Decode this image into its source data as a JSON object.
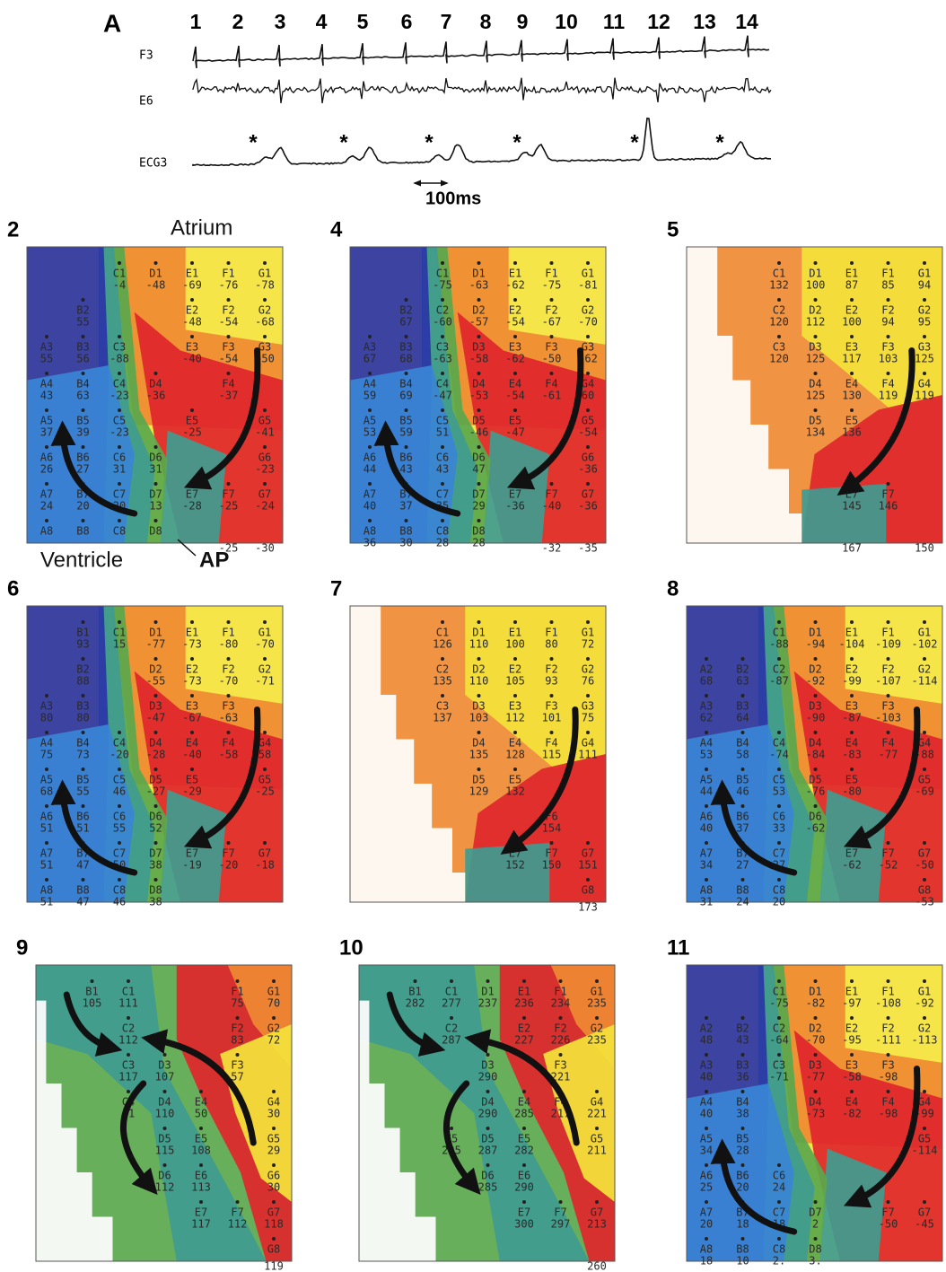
{
  "panel_a": {
    "label": "A",
    "beats": [
      1,
      2,
      3,
      4,
      5,
      6,
      7,
      8,
      9,
      10,
      11,
      12,
      13,
      14
    ],
    "traces": [
      "F3",
      "E6",
      "ECG3"
    ],
    "ecg_markers": [
      "*",
      "*",
      "*",
      "*",
      "*",
      "*"
    ],
    "scale_label": "100ms"
  },
  "maps": [
    {
      "label": "2",
      "annotations": [
        "Atrium",
        "Ventricle",
        "AP"
      ],
      "electrodes": [
        [
          "C1",
          -4
        ],
        [
          "D1",
          -48
        ],
        [
          "E1",
          -69
        ],
        [
          "F1",
          -76
        ],
        [
          "G1",
          -78
        ],
        [
          "B2",
          55
        ],
        [
          "E2",
          -48
        ],
        [
          "F2",
          -54
        ],
        [
          "G2",
          -68
        ],
        [
          "A3",
          55
        ],
        [
          "B3",
          56
        ],
        [
          "C3",
          -88
        ],
        [
          "E3",
          -40
        ],
        [
          "F3",
          -54
        ],
        [
          "G3",
          -50
        ],
        [
          "A4",
          43
        ],
        [
          "B4",
          63
        ],
        [
          "C4",
          -23
        ],
        [
          "D4",
          -36
        ],
        [
          "F4",
          -37
        ],
        [
          "A5",
          37
        ],
        [
          "B5",
          39
        ],
        [
          "C5",
          -23
        ],
        [
          "E5",
          -25
        ],
        [
          "G5",
          -41
        ],
        [
          "A6",
          26
        ],
        [
          "B6",
          27
        ],
        [
          "C6",
          31
        ],
        [
          "D6",
          31
        ],
        [
          "G6",
          -23
        ],
        [
          "A7",
          24
        ],
        [
          "B7",
          20
        ],
        [
          "C7",
          20
        ],
        [
          "D7",
          13
        ],
        [
          "E7",
          -28
        ],
        [
          "F7",
          -25
        ],
        [
          "G7",
          -24
        ],
        [
          "A8"
        ],
        [
          "B8"
        ],
        [
          "C8"
        ],
        [
          "D8"
        ]
      ],
      "bottom_values": [
        -25,
        -30
      ]
    },
    {
      "label": "4",
      "electrodes": [
        [
          "C1",
          -75
        ],
        [
          "D1",
          -63
        ],
        [
          "E1",
          -62
        ],
        [
          "F1",
          -75
        ],
        [
          "G1",
          -81
        ],
        [
          "B2",
          67
        ],
        [
          "C2",
          -60
        ],
        [
          "D2",
          -57
        ],
        [
          "E2",
          -54
        ],
        [
          "F2",
          -67
        ],
        [
          "G2",
          -70
        ],
        [
          "A3",
          67
        ],
        [
          "B3",
          68
        ],
        [
          "C3",
          -63
        ],
        [
          "D3",
          -58
        ],
        [
          "E3",
          -62
        ],
        [
          "F3",
          -50
        ],
        [
          "G3",
          -62
        ],
        [
          "A4",
          59
        ],
        [
          "B4",
          69
        ],
        [
          "C4",
          -47
        ],
        [
          "D4",
          -53
        ],
        [
          "E4",
          -54
        ],
        [
          "F4",
          -61
        ],
        [
          "G4",
          60
        ],
        [
          "A5",
          53
        ],
        [
          "B5",
          59
        ],
        [
          "C5",
          51
        ],
        [
          "D5",
          -46
        ],
        [
          "E5",
          -47
        ],
        [
          "G5",
          -54
        ],
        [
          "A6",
          44
        ],
        [
          "B6",
          43
        ],
        [
          "C6",
          43
        ],
        [
          "D6",
          47
        ],
        [
          "G6",
          -36
        ],
        [
          "A7",
          40
        ],
        [
          "B7",
          37
        ],
        [
          "C7",
          35
        ],
        [
          "D7",
          29
        ],
        [
          "E7",
          -36
        ],
        [
          "F7",
          -40
        ],
        [
          "G7",
          -36
        ],
        [
          "A8",
          36
        ],
        [
          "B8",
          30
        ],
        [
          "C8",
          28
        ],
        [
          "D8",
          28
        ]
      ],
      "bottom_values": [
        -32,
        -35
      ]
    },
    {
      "label": "5",
      "electrodes": [
        [
          "C1",
          132
        ],
        [
          "D1",
          100
        ],
        [
          "E1",
          87
        ],
        [
          "F1",
          85
        ],
        [
          "G1",
          94
        ],
        [
          "C2",
          120
        ],
        [
          "D2",
          112
        ],
        [
          "E2",
          100
        ],
        [
          "F2",
          94
        ],
        [
          "G2",
          95
        ],
        [
          "C3",
          120
        ],
        [
          "D3",
          125
        ],
        [
          "E3",
          117
        ],
        [
          "F3",
          103
        ],
        [
          "G3",
          125
        ],
        [
          "D4",
          125
        ],
        [
          "E4",
          130
        ],
        [
          "F4",
          119
        ],
        [
          "G4",
          119
        ],
        [
          "D5",
          134
        ],
        [
          "E5",
          136
        ],
        [
          "E7",
          145
        ],
        [
          "F7",
          146
        ]
      ],
      "bottom_values": [
        167,
        150
      ]
    },
    {
      "label": "6",
      "electrodes": [
        [
          "B1",
          93
        ],
        [
          "C1",
          15
        ],
        [
          "D1",
          -77
        ],
        [
          "E1",
          -73
        ],
        [
          "F1",
          -80
        ],
        [
          "G1",
          -70
        ],
        [
          "B2",
          88
        ],
        [
          "D2",
          -55
        ],
        [
          "E2",
          -73
        ],
        [
          "F2",
          -70
        ],
        [
          "G2",
          -71
        ],
        [
          "A3",
          80
        ],
        [
          "B3",
          80
        ],
        [
          "D3",
          -47
        ],
        [
          "E3",
          -67
        ],
        [
          "F3",
          -63
        ],
        [
          "A4",
          75
        ],
        [
          "B4",
          73
        ],
        [
          "C4",
          -20
        ],
        [
          "D4",
          -28
        ],
        [
          "E4",
          -40
        ],
        [
          "F4",
          -58
        ],
        [
          "G4",
          58
        ],
        [
          "A5",
          68
        ],
        [
          "B5",
          55
        ],
        [
          "C5",
          46
        ],
        [
          "D5",
          -27
        ],
        [
          "E5",
          -29
        ],
        [
          "G5",
          -25
        ],
        [
          "A6",
          51
        ],
        [
          "B6",
          51
        ],
        [
          "C6",
          55
        ],
        [
          "D6",
          52
        ],
        [
          "A7",
          51
        ],
        [
          "B7",
          47
        ],
        [
          "C7",
          50
        ],
        [
          "D7",
          38
        ],
        [
          "E7",
          -19
        ],
        [
          "F7",
          -20
        ],
        [
          "G7",
          -18
        ],
        [
          "A8",
          51
        ],
        [
          "B8",
          47
        ],
        [
          "C8",
          46
        ],
        [
          "D8",
          38
        ]
      ]
    },
    {
      "label": "7",
      "electrodes": [
        [
          "C1",
          126
        ],
        [
          "D1",
          110
        ],
        [
          "E1",
          100
        ],
        [
          "F1",
          80
        ],
        [
          "G1",
          72
        ],
        [
          "C2",
          135
        ],
        [
          "D2",
          110
        ],
        [
          "E2",
          105
        ],
        [
          "F2",
          93
        ],
        [
          "G2",
          76
        ],
        [
          "C3",
          137
        ],
        [
          "D3",
          103
        ],
        [
          "E3",
          112
        ],
        [
          "F3",
          101
        ],
        [
          "G3",
          75
        ],
        [
          "D4",
          135
        ],
        [
          "E4",
          128
        ],
        [
          "F4",
          115
        ],
        [
          "G4",
          111
        ],
        [
          "D5",
          129
        ],
        [
          "E5",
          132
        ],
        [
          "F6",
          154
        ],
        [
          "E7",
          152
        ],
        [
          "F7",
          150
        ],
        [
          "G7",
          151
        ],
        [
          "G8"
        ]
      ],
      "bottom_values": [
        173
      ]
    },
    {
      "label": "8",
      "electrodes": [
        [
          "C1",
          -88
        ],
        [
          "D1",
          -94
        ],
        [
          "E1",
          -104
        ],
        [
          "F1",
          -109
        ],
        [
          "G1",
          -102
        ],
        [
          "A2",
          68
        ],
        [
          "B2",
          63
        ],
        [
          "C2",
          -87
        ],
        [
          "D2",
          -92
        ],
        [
          "E2",
          -99
        ],
        [
          "F2",
          -107
        ],
        [
          "G2",
          -114
        ],
        [
          "A3",
          62
        ],
        [
          "B3",
          64
        ],
        [
          "D3",
          -90
        ],
        [
          "E3",
          -87
        ],
        [
          "F3",
          -103
        ],
        [
          "A4",
          53
        ],
        [
          "B4",
          58
        ],
        [
          "C4",
          -74
        ],
        [
          "D4",
          -84
        ],
        [
          "E4",
          -83
        ],
        [
          "F4",
          -77
        ],
        [
          "G4",
          -88
        ],
        [
          "A5",
          44
        ],
        [
          "B5",
          46
        ],
        [
          "C5",
          53
        ],
        [
          "D5",
          -76
        ],
        [
          "E5",
          -80
        ],
        [
          "G5",
          -69
        ],
        [
          "A6",
          40
        ],
        [
          "B6",
          37
        ],
        [
          "C6",
          33
        ],
        [
          "D6",
          -62
        ],
        [
          "A7",
          34
        ],
        [
          "B7",
          27
        ],
        [
          "C7",
          27
        ],
        [
          "E7",
          -62
        ],
        [
          "F7",
          -52
        ],
        [
          "G7",
          -50
        ],
        [
          "A8",
          31
        ],
        [
          "B8",
          24
        ],
        [
          "C8",
          20
        ],
        [
          "G8",
          -53
        ]
      ]
    },
    {
      "label": "9",
      "electrodes": [
        [
          "B1",
          105
        ],
        [
          "C1",
          111
        ],
        [
          "F1",
          75
        ],
        [
          "G1",
          70
        ],
        [
          "C2",
          112
        ],
        [
          "F2",
          83
        ],
        [
          "G2",
          72
        ],
        [
          "C3",
          117
        ],
        [
          "D3",
          107
        ],
        [
          "F3",
          57
        ],
        [
          "C4",
          11
        ],
        [
          "D4",
          110
        ],
        [
          "E4",
          50
        ],
        [
          "G4",
          30
        ],
        [
          "D5",
          115
        ],
        [
          "E5",
          108
        ],
        [
          "G5",
          29
        ],
        [
          "D6",
          112
        ],
        [
          "E6",
          113
        ],
        [
          "G6",
          30
        ],
        [
          "E7",
          117
        ],
        [
          "F7",
          112
        ],
        [
          "G7",
          118
        ],
        [
          "G8"
        ]
      ],
      "bottom_values": [
        119
      ]
    },
    {
      "label": "10",
      "electrodes": [
        [
          "B1",
          282
        ],
        [
          "C1",
          277
        ],
        [
          "D1",
          237
        ],
        [
          "E1",
          236
        ],
        [
          "F1",
          234
        ],
        [
          "G1",
          235
        ],
        [
          "C2",
          287
        ],
        [
          "E2",
          227
        ],
        [
          "F2",
          226
        ],
        [
          "G2",
          235
        ],
        [
          "D3",
          290
        ],
        [
          "F3",
          221
        ],
        [
          "D4",
          290
        ],
        [
          "E4",
          285
        ],
        [
          "F4",
          217
        ],
        [
          "G4",
          221
        ],
        [
          "C5",
          295
        ],
        [
          "D5",
          287
        ],
        [
          "E5",
          282
        ],
        [
          "G5",
          211
        ],
        [
          "D6",
          285
        ],
        [
          "E6",
          290
        ],
        [
          "E7",
          300
        ],
        [
          "F7",
          297
        ],
        [
          "G7",
          213
        ]
      ],
      "bottom_values": [
        260
      ]
    },
    {
      "label": "11",
      "electrodes": [
        [
          "C1",
          -75
        ],
        [
          "D1",
          -82
        ],
        [
          "E1",
          -97
        ],
        [
          "F1",
          -108
        ],
        [
          "G1",
          -92
        ],
        [
          "A2",
          48
        ],
        [
          "B2",
          43
        ],
        [
          "C2",
          -64
        ],
        [
          "D2",
          -70
        ],
        [
          "E2",
          -95
        ],
        [
          "F2",
          -111
        ],
        [
          "G2",
          -113
        ],
        [
          "A3",
          40
        ],
        [
          "B3",
          36
        ],
        [
          "C3",
          -71
        ],
        [
          "D3",
          -77
        ],
        [
          "E3",
          -58
        ],
        [
          "F3",
          -98
        ],
        [
          "A4",
          40
        ],
        [
          "B4",
          38
        ],
        [
          "D4",
          -73
        ],
        [
          "E4",
          -82
        ],
        [
          "F4",
          -98
        ],
        [
          "G4",
          -99
        ],
        [
          "A5",
          34
        ],
        [
          "B5",
          28
        ],
        [
          "G5",
          -114
        ],
        [
          "A6",
          25
        ],
        [
          "B6",
          20
        ],
        [
          "C6",
          24
        ],
        [
          "A7",
          20
        ],
        [
          "B7",
          18
        ],
        [
          "C7",
          18
        ],
        [
          "D7",
          2
        ],
        [
          "F7",
          -50
        ],
        [
          "G7",
          -45
        ],
        [
          "A8",
          18
        ],
        [
          "B8",
          10
        ],
        [
          "C8",
          "2."
        ],
        [
          "D8",
          "3."
        ]
      ]
    }
  ]
}
